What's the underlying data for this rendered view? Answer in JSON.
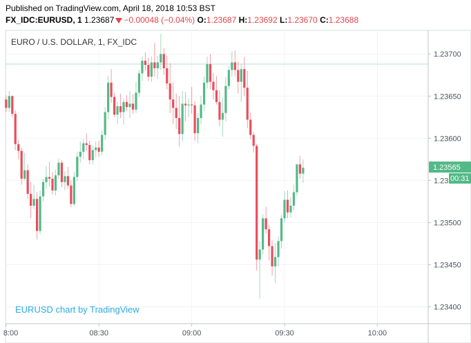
{
  "header": {
    "published": "Published on TradingView.com, April 18, 2018 10:53 BST",
    "symbol": "FX_IDC:EURUSD, 1",
    "last": "1.23687",
    "change": "−0.00048 (−0.04%)",
    "o_label": "O:",
    "o_value": "1.23687",
    "h_label": "H:",
    "h_value": "1.23692",
    "l_label": "L:",
    "l_value": "1.23670",
    "c_label": "C:",
    "c_value": "1.23688"
  },
  "legend_title": "EURO / U.S. DOLLAR, 1, FX_IDC",
  "watermark": "EURUSD chart by TradingView",
  "colors": {
    "up": "#53b987",
    "down": "#eb4d5c",
    "grid": "#f0f3f5",
    "axis_text": "#4c525e",
    "tag_bg": "#53b987",
    "hline": "#b2dfdb"
  },
  "chart_data": {
    "type": "candlestick",
    "ylim": [
      1.2338,
      1.23728
    ],
    "yticks": [
      "1.23700",
      "1.23650",
      "1.23600",
      "1.23550",
      "1.23500",
      "1.23450",
      "1.23400"
    ],
    "xticks": [
      {
        "label": "8:00",
        "minute": 0
      },
      {
        "label": "08:30",
        "minute": 30
      },
      {
        "label": "09:00",
        "minute": 60
      },
      {
        "label": "09:30",
        "minute": 90
      },
      {
        "label": "10:00",
        "minute": 120
      }
    ],
    "x_range": [
      0,
      136
    ],
    "reference_price": 1.23688,
    "last_price_label": "1.23565",
    "countdown_label": "00:31",
    "last_price": 1.23565,
    "candles": [
      [
        1.23646,
        1.23651,
        1.23631,
        1.23636
      ],
      [
        1.23636,
        1.23656,
        1.23631,
        1.2365
      ],
      [
        1.2365,
        1.23651,
        1.23625,
        1.23629
      ],
      [
        1.23629,
        1.23633,
        1.23586,
        1.23593
      ],
      [
        1.23593,
        1.23598,
        1.23575,
        1.23585
      ],
      [
        1.23585,
        1.23589,
        1.23545,
        1.23552
      ],
      [
        1.23552,
        1.23583,
        1.2355,
        1.23562
      ],
      [
        1.23562,
        1.23569,
        1.23528,
        1.23534
      ],
      [
        1.23534,
        1.23548,
        1.23505,
        1.2352
      ],
      [
        1.2352,
        1.23545,
        1.23516,
        1.23528
      ],
      [
        1.23528,
        1.23536,
        1.2348,
        1.2349
      ],
      [
        1.2349,
        1.23538,
        1.23486,
        1.23531
      ],
      [
        1.23531,
        1.23552,
        1.23525,
        1.23548
      ],
      [
        1.23548,
        1.23567,
        1.2354,
        1.23554
      ],
      [
        1.23554,
        1.23572,
        1.23543,
        1.23552
      ],
      [
        1.23552,
        1.2356,
        1.23533,
        1.23538
      ],
      [
        1.23538,
        1.23563,
        1.23532,
        1.23556
      ],
      [
        1.23556,
        1.23576,
        1.23552,
        1.23571
      ],
      [
        1.23571,
        1.23574,
        1.23542,
        1.23548
      ],
      [
        1.23548,
        1.23561,
        1.23538,
        1.23555
      ],
      [
        1.23555,
        1.23566,
        1.2354,
        1.23544
      ],
      [
        1.23544,
        1.2355,
        1.23518,
        1.23522
      ],
      [
        1.23522,
        1.2356,
        1.23519,
        1.23554
      ],
      [
        1.23554,
        1.23584,
        1.23549,
        1.23578
      ],
      [
        1.23578,
        1.23596,
        1.23571,
        1.23584
      ],
      [
        1.23584,
        1.23599,
        1.23575,
        1.23594
      ],
      [
        1.23594,
        1.23606,
        1.23585,
        1.23592
      ],
      [
        1.23592,
        1.23597,
        1.23569,
        1.23574
      ],
      [
        1.23574,
        1.23591,
        1.23569,
        1.23586
      ],
      [
        1.23586,
        1.23596,
        1.23577,
        1.23589
      ],
      [
        1.23589,
        1.23597,
        1.23578,
        1.23584
      ],
      [
        1.23584,
        1.2361,
        1.2358,
        1.23604
      ],
      [
        1.23604,
        1.23637,
        1.23598,
        1.23631
      ],
      [
        1.23631,
        1.23674,
        1.23623,
        1.23666
      ],
      [
        1.23666,
        1.23682,
        1.23642,
        1.23649
      ],
      [
        1.23649,
        1.23654,
        1.23625,
        1.23628
      ],
      [
        1.23628,
        1.23643,
        1.23617,
        1.23638
      ],
      [
        1.23638,
        1.23653,
        1.23624,
        1.23631
      ],
      [
        1.23631,
        1.23647,
        1.23616,
        1.23643
      ],
      [
        1.23643,
        1.23651,
        1.23632,
        1.23637
      ],
      [
        1.23637,
        1.23656,
        1.23624,
        1.23641
      ],
      [
        1.23641,
        1.23652,
        1.23629,
        1.23634
      ],
      [
        1.23634,
        1.23667,
        1.2363,
        1.23654
      ],
      [
        1.23654,
        1.23681,
        1.23649,
        1.23677
      ],
      [
        1.23677,
        1.23697,
        1.23668,
        1.23692
      ],
      [
        1.23692,
        1.23702,
        1.2368,
        1.23687
      ],
      [
        1.23687,
        1.23696,
        1.23668,
        1.23673
      ],
      [
        1.23673,
        1.23697,
        1.23667,
        1.2369
      ],
      [
        1.2369,
        1.23713,
        1.23673,
        1.23683
      ],
      [
        1.23683,
        1.23698,
        1.2367,
        1.2369
      ],
      [
        1.2369,
        1.23724,
        1.23681,
        1.237
      ],
      [
        1.237,
        1.23707,
        1.23675,
        1.23683
      ],
      [
        1.23683,
        1.23698,
        1.23658,
        1.23665
      ],
      [
        1.23665,
        1.23689,
        1.2363,
        1.23646
      ],
      [
        1.23646,
        1.23666,
        1.23617,
        1.23636
      ],
      [
        1.23636,
        1.23653,
        1.23611,
        1.23624
      ],
      [
        1.23624,
        1.2365,
        1.2359,
        1.23605
      ],
      [
        1.23605,
        1.23656,
        1.23596,
        1.23641
      ],
      [
        1.23641,
        1.23655,
        1.2362,
        1.23639
      ],
      [
        1.23639,
        1.23647,
        1.23625,
        1.2364
      ],
      [
        1.2364,
        1.23661,
        1.23629,
        1.23639
      ],
      [
        1.23639,
        1.23644,
        1.23597,
        1.23606
      ],
      [
        1.23606,
        1.2363,
        1.23594,
        1.23624
      ],
      [
        1.23624,
        1.2365,
        1.23617,
        1.2364
      ],
      [
        1.2364,
        1.23673,
        1.23632,
        1.23666
      ],
      [
        1.23666,
        1.23697,
        1.23659,
        1.23688
      ],
      [
        1.23688,
        1.237,
        1.23658,
        1.23667
      ],
      [
        1.23667,
        1.23677,
        1.23646,
        1.23657
      ],
      [
        1.23657,
        1.23674,
        1.2364,
        1.23643
      ],
      [
        1.23643,
        1.23657,
        1.23614,
        1.23622
      ],
      [
        1.23622,
        1.23648,
        1.23602,
        1.2363
      ],
      [
        1.2363,
        1.23673,
        1.2362,
        1.23662
      ],
      [
        1.23662,
        1.23686,
        1.23658,
        1.23681
      ],
      [
        1.23681,
        1.23703,
        1.23673,
        1.2369
      ],
      [
        1.2369,
        1.23704,
        1.23673,
        1.23681
      ],
      [
        1.23681,
        1.23691,
        1.23653,
        1.23667
      ],
      [
        1.23667,
        1.23688,
        1.23643,
        1.23682
      ],
      [
        1.23682,
        1.23696,
        1.2365,
        1.2366
      ],
      [
        1.2366,
        1.2368,
        1.23612,
        1.23622
      ],
      [
        1.23622,
        1.2363,
        1.23599,
        1.23604
      ],
      [
        1.23604,
        1.23607,
        1.23583,
        1.23591
      ],
      [
        1.23591,
        1.23593,
        1.23443,
        1.23456
      ],
      [
        1.23456,
        1.23478,
        1.2341,
        1.23468
      ],
      [
        1.23468,
        1.2351,
        1.23462,
        1.23505
      ],
      [
        1.23505,
        1.23519,
        1.23487,
        1.23492
      ],
      [
        1.23492,
        1.23497,
        1.23455,
        1.23472
      ],
      [
        1.23472,
        1.23479,
        1.23437,
        1.23448
      ],
      [
        1.23448,
        1.23476,
        1.23428,
        1.23459
      ],
      [
        1.23459,
        1.23483,
        1.23448,
        1.23478
      ],
      [
        1.23478,
        1.23509,
        1.23469,
        1.23505
      ],
      [
        1.23505,
        1.23537,
        1.235,
        1.23527
      ],
      [
        1.23527,
        1.23538,
        1.23505,
        1.23512
      ],
      [
        1.23512,
        1.2353,
        1.23506,
        1.2352
      ],
      [
        1.2352,
        1.23545,
        1.23514,
        1.23536
      ],
      [
        1.23536,
        1.23568,
        1.23532,
        1.23569
      ],
      [
        1.23569,
        1.23579,
        1.23552,
        1.23558
      ],
      [
        1.23558,
        1.23575,
        1.23547,
        1.23565
      ]
    ]
  }
}
